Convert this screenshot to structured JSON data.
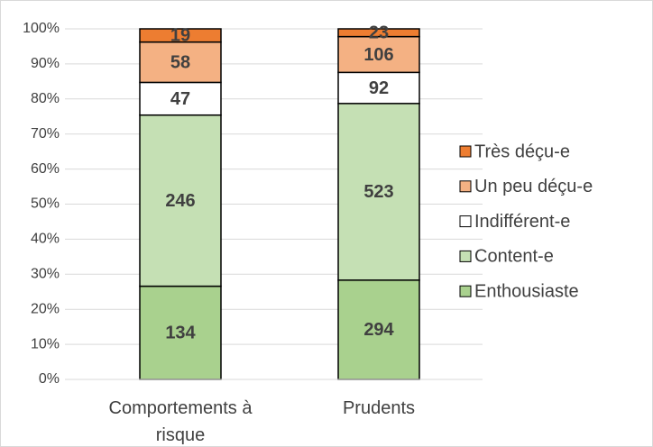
{
  "chart_data": {
    "type": "bar",
    "stacking": "percent",
    "categories": [
      "Comportements à risque",
      "Prudents"
    ],
    "series": [
      {
        "name": "Enthousiaste",
        "color": "#a9d18e",
        "values": [
          134,
          294
        ]
      },
      {
        "name": "Content-e",
        "color": "#c5e0b4",
        "values": [
          246,
          523
        ]
      },
      {
        "name": "Indifférent-e",
        "color": "#ffffff",
        "values": [
          47,
          92
        ]
      },
      {
        "name": "Un peu déçu-e",
        "color": "#f4b183",
        "values": [
          58,
          106
        ]
      },
      {
        "name": "Très déçu-e",
        "color": "#ed7d31",
        "values": [
          19,
          23
        ]
      }
    ],
    "ylim": [
      0,
      100
    ],
    "yticks": [
      {
        "value": 0,
        "label": "0%"
      },
      {
        "value": 10,
        "label": "10%"
      },
      {
        "value": 20,
        "label": "20%"
      },
      {
        "value": 30,
        "label": "30%"
      },
      {
        "value": 40,
        "label": "40%"
      },
      {
        "value": 50,
        "label": "50%"
      },
      {
        "value": 60,
        "label": "60%"
      },
      {
        "value": 70,
        "label": "70%"
      },
      {
        "value": 80,
        "label": "80%"
      },
      {
        "value": 90,
        "label": "90%"
      },
      {
        "value": 100,
        "label": "100%"
      }
    ],
    "grid": true,
    "legend": "right"
  }
}
